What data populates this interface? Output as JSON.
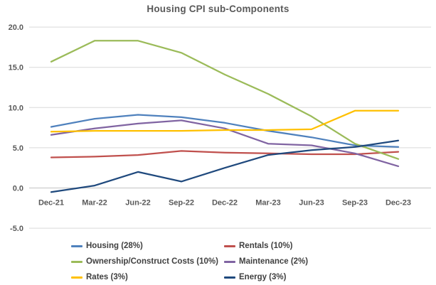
{
  "chart_data": {
    "type": "line",
    "title": "Housing CPI sub-Components",
    "categories": [
      "Dec-21",
      "Mar-22",
      "Jun-22",
      "Sep-22",
      "Dec-22",
      "Mar-23",
      "Jun-23",
      "Sep-23",
      "Dec-23"
    ],
    "series": [
      {
        "name": "Housing (28%)",
        "color": "#4f81bd",
        "values": [
          7.6,
          8.6,
          9.1,
          8.8,
          8.1,
          7.1,
          6.3,
          5.3,
          5.1
        ]
      },
      {
        "name": "Rentals (10%)",
        "color": "#c0504d",
        "values": [
          3.8,
          3.9,
          4.1,
          4.6,
          4.4,
          4.3,
          4.2,
          4.2,
          4.5
        ]
      },
      {
        "name": "Ownership/Construct Costs (10%)",
        "color": "#9bbb59",
        "values": [
          15.7,
          18.3,
          18.3,
          16.8,
          14.1,
          11.7,
          8.9,
          5.5,
          3.6
        ]
      },
      {
        "name": "Maintenance (2%)",
        "color": "#8064a2",
        "values": [
          6.6,
          7.4,
          8.0,
          8.4,
          7.4,
          5.5,
          5.3,
          4.3,
          2.7
        ]
      },
      {
        "name": "Rates (3%)",
        "color": "#ffc000",
        "values": [
          7.0,
          7.1,
          7.1,
          7.1,
          7.2,
          7.2,
          7.3,
          9.6,
          9.6
        ]
      },
      {
        "name": "Energy (3%)",
        "color": "#1f497d",
        "values": [
          -0.5,
          0.3,
          2.0,
          0.8,
          2.5,
          4.1,
          4.7,
          5.1,
          5.9
        ]
      }
    ],
    "y_ticks": [
      20.0,
      15.0,
      10.0,
      5.0,
      0.0,
      -5.0
    ],
    "y_tick_labels": [
      "20.0",
      "15.0",
      "10.0",
      "5.0",
      "0.0",
      "-5.0"
    ],
    "ylim": [
      -5,
      20
    ],
    "xlabel": "",
    "ylabel": "",
    "grid": true,
    "legend_position": "bottom",
    "legend_columns": 2
  },
  "style_colors": {
    "title_text": "#595959",
    "axis_text": "#595959",
    "legend_text": "#404040",
    "gridline": "#d9d9d9",
    "zero_axis_line": "#c3c3c3"
  }
}
